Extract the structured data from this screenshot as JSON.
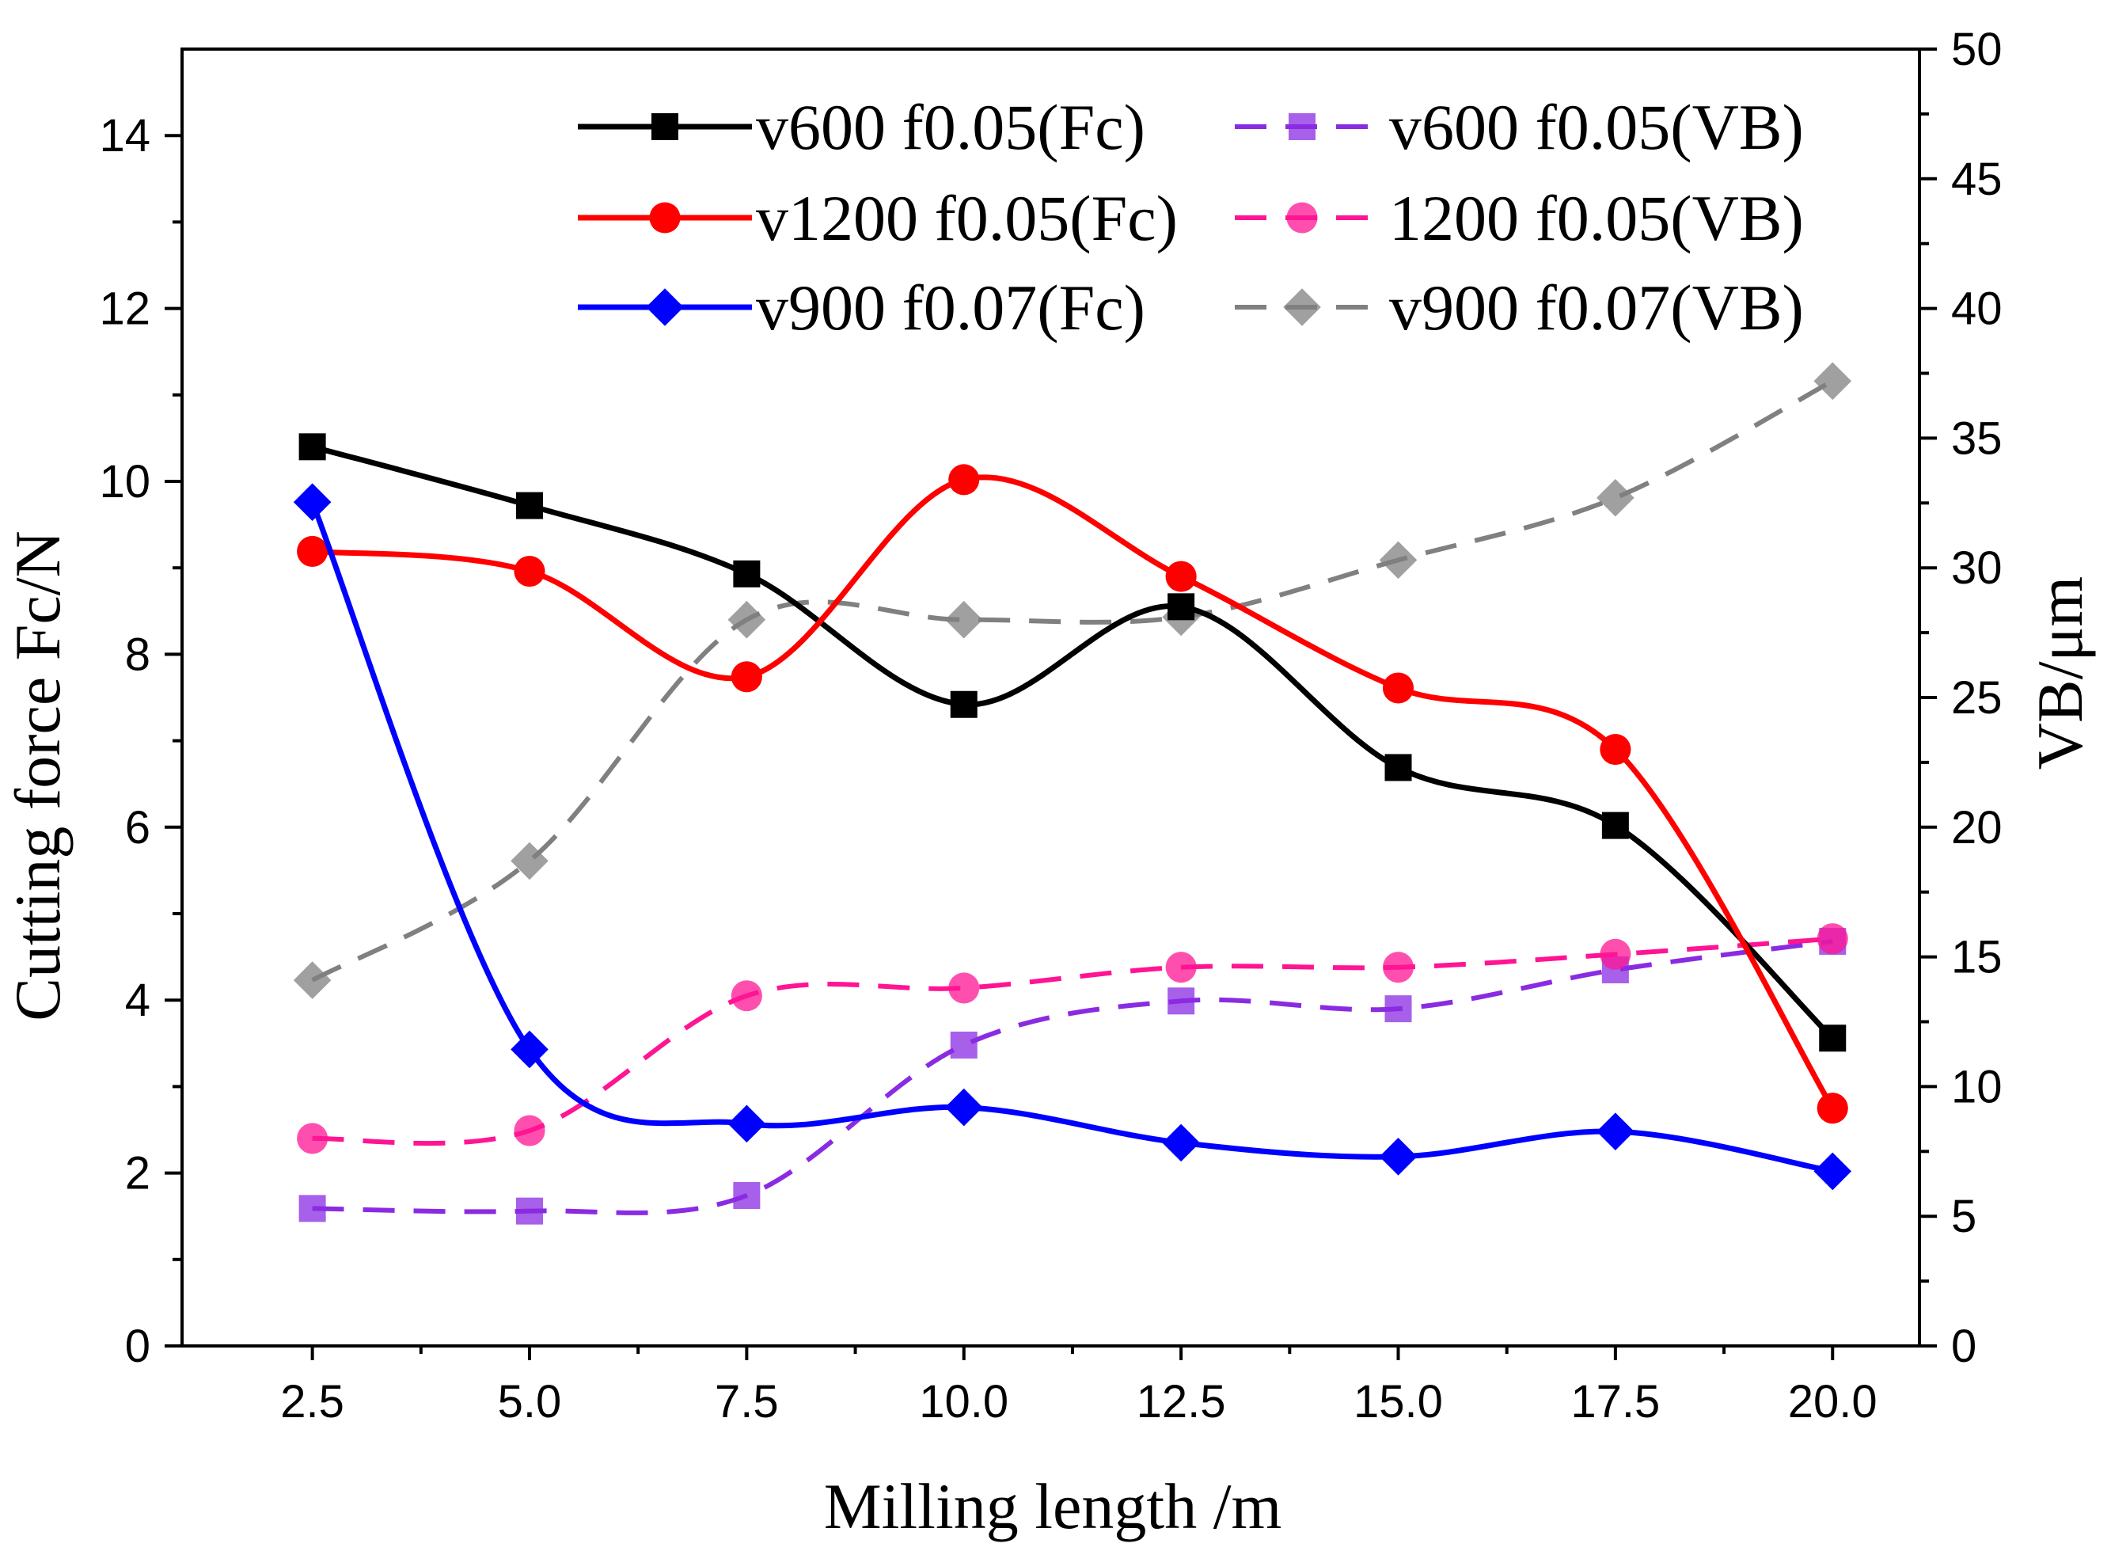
{
  "chart_data": {
    "type": "line",
    "title": "",
    "xlabel": "Milling length /m",
    "ylabel": "Cutting force Fc/N",
    "y2label": "VB/μm",
    "xlim": [
      1.0,
      21.0
    ],
    "ylim": [
      0,
      15
    ],
    "y2lim": [
      0,
      50
    ],
    "x_ticks": [
      2.5,
      5.0,
      7.5,
      10.0,
      12.5,
      15.0,
      17.5,
      20.0
    ],
    "x_tick_labels": [
      "2.5",
      "5.0",
      "7.5",
      "10.0",
      "12.5",
      "15.0",
      "17.5",
      "20.0"
    ],
    "y_ticks": [
      0,
      2,
      4,
      6,
      8,
      10,
      12,
      14
    ],
    "y_tick_labels": [
      "0",
      "2",
      "4",
      "6",
      "8",
      "10",
      "12",
      "14"
    ],
    "y2_ticks": [
      0,
      5,
      10,
      15,
      20,
      25,
      30,
      35,
      40,
      45,
      50
    ],
    "y2_tick_labels": [
      "0",
      "5",
      "10",
      "15",
      "20",
      "25",
      "30",
      "35",
      "40",
      "45",
      "50"
    ],
    "x": [
      2.5,
      5.0,
      7.5,
      10.0,
      12.5,
      15.0,
      17.5,
      20.0
    ],
    "grid": false,
    "legend_position": "top",
    "series": [
      {
        "name": "v600 f0.05(Fc)",
        "axis": "left",
        "values": [
          10.4,
          9.72,
          8.93,
          7.42,
          8.55,
          6.69,
          6.02,
          3.56
        ],
        "color": "#000000",
        "marker": "square",
        "dash": false
      },
      {
        "name": "v1200 f0.05(Fc)",
        "axis": "left",
        "values": [
          9.19,
          8.96,
          7.74,
          10.02,
          8.9,
          7.61,
          6.9,
          2.75
        ],
        "color": "#ff0000",
        "marker": "circle",
        "dash": false
      },
      {
        "name": "v900 f0.07(Fc)",
        "axis": "left",
        "values": [
          9.76,
          3.43,
          2.57,
          2.76,
          2.35,
          2.19,
          2.48,
          2.02
        ],
        "color": "#0000ff",
        "marker": "diamond",
        "dash": false
      },
      {
        "name": "v600 f0.05(VB)",
        "axis": "right",
        "values": [
          5.3,
          5.2,
          5.8,
          11.6,
          13.3,
          13.0,
          14.5,
          15.6
        ],
        "color": "#8a2be2",
        "marker": "square",
        "dash": true
      },
      {
        "name": "1200 f0.05(VB)",
        "axis": "right",
        "values": [
          8.0,
          8.3,
          13.5,
          13.8,
          14.6,
          14.6,
          15.1,
          15.7
        ],
        "color": "#ff1493",
        "marker": "circle",
        "dash": true
      },
      {
        "name": "v900 f0.07(VB)",
        "axis": "right",
        "values": [
          14.1,
          18.7,
          28.0,
          28.0,
          28.1,
          30.3,
          32.7,
          37.2
        ],
        "color": "#808080",
        "marker": "diamond",
        "dash": true
      }
    ]
  }
}
